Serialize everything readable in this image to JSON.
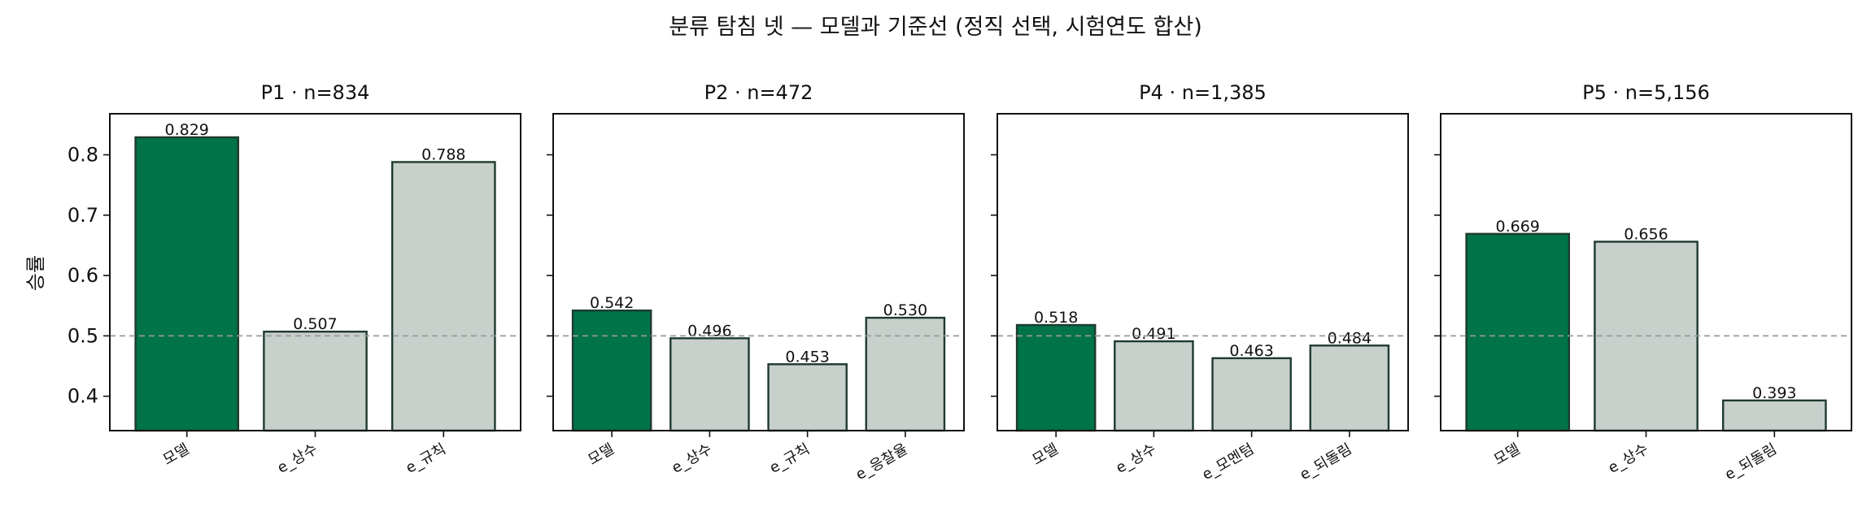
{
  "colors": {
    "model": "#007348",
    "baseline": "#c8d0cc",
    "bar_edge": "#1e3a2e",
    "refline": "#999999"
  },
  "chart_data": {
    "type": "bar",
    "title": "분류 탐침 넷 — 모델과 기준선 (정직 선택, 시험연도 합산)",
    "ylabel": "승률",
    "ylim": [
      0.343,
      0.868
    ],
    "yticks": [
      "0.4",
      "0.5",
      "0.6",
      "0.7",
      "0.8"
    ],
    "reference_line": 0.5,
    "panels": [
      {
        "title": "P1 · n=834",
        "categories": [
          "모델",
          "e_상수",
          "e_규칙"
        ],
        "values": [
          0.829,
          0.507,
          0.788
        ],
        "labels": [
          "0.829",
          "0.507",
          "0.788"
        ]
      },
      {
        "title": "P2 · n=472",
        "categories": [
          "모델",
          "e_상수",
          "e_규칙",
          "e_응찰율"
        ],
        "values": [
          0.542,
          0.496,
          0.453,
          0.53
        ],
        "labels": [
          "0.542",
          "0.496",
          "0.453",
          "0.530"
        ]
      },
      {
        "title": "P4 · n=1,385",
        "categories": [
          "모델",
          "e_상수",
          "e_모멘텀",
          "e_되돌림"
        ],
        "values": [
          0.518,
          0.491,
          0.463,
          0.484
        ],
        "labels": [
          "0.518",
          "0.491",
          "0.463",
          "0.484"
        ]
      },
      {
        "title": "P5 · n=5,156",
        "categories": [
          "모델",
          "e_상수",
          "e_되돌림"
        ],
        "values": [
          0.669,
          0.656,
          0.393
        ],
        "labels": [
          "0.669",
          "0.656",
          "0.393"
        ]
      }
    ]
  }
}
